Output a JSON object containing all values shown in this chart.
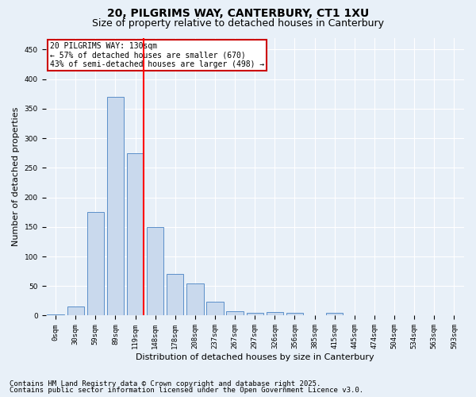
{
  "title1": "20, PILGRIMS WAY, CANTERBURY, CT1 1XU",
  "title2": "Size of property relative to detached houses in Canterbury",
  "xlabel": "Distribution of detached houses by size in Canterbury",
  "ylabel": "Number of detached properties",
  "categories": [
    "0sqm",
    "30sqm",
    "59sqm",
    "89sqm",
    "119sqm",
    "148sqm",
    "178sqm",
    "208sqm",
    "237sqm",
    "267sqm",
    "297sqm",
    "326sqm",
    "356sqm",
    "385sqm",
    "415sqm",
    "445sqm",
    "474sqm",
    "504sqm",
    "534sqm",
    "563sqm",
    "593sqm"
  ],
  "values": [
    2,
    15,
    175,
    370,
    275,
    150,
    70,
    55,
    23,
    8,
    5,
    6,
    5,
    0,
    5,
    0,
    0,
    1,
    0,
    0,
    1
  ],
  "bar_color": "#c9d9ed",
  "bar_edge_color": "#5b8fc9",
  "bar_width": 0.85,
  "ylim": [
    0,
    470
  ],
  "yticks": [
    0,
    50,
    100,
    150,
    200,
    250,
    300,
    350,
    400,
    450
  ],
  "annotation_text": "20 PILGRIMS WAY: 130sqm\n← 57% of detached houses are smaller (670)\n43% of semi-detached houses are larger (498) →",
  "annotation_box_color": "#ffffff",
  "annotation_box_edge": "#cc0000",
  "footnote1": "Contains HM Land Registry data © Crown copyright and database right 2025.",
  "footnote2": "Contains public sector information licensed under the Open Government Licence v3.0.",
  "bg_color": "#e8f0f8",
  "plot_bg_color": "#e8f0f8",
  "grid_color": "#ffffff",
  "title_fontsize": 10,
  "subtitle_fontsize": 9,
  "footnote_fontsize": 6.5,
  "tick_fontsize": 6.5,
  "ylabel_fontsize": 8,
  "xlabel_fontsize": 8
}
